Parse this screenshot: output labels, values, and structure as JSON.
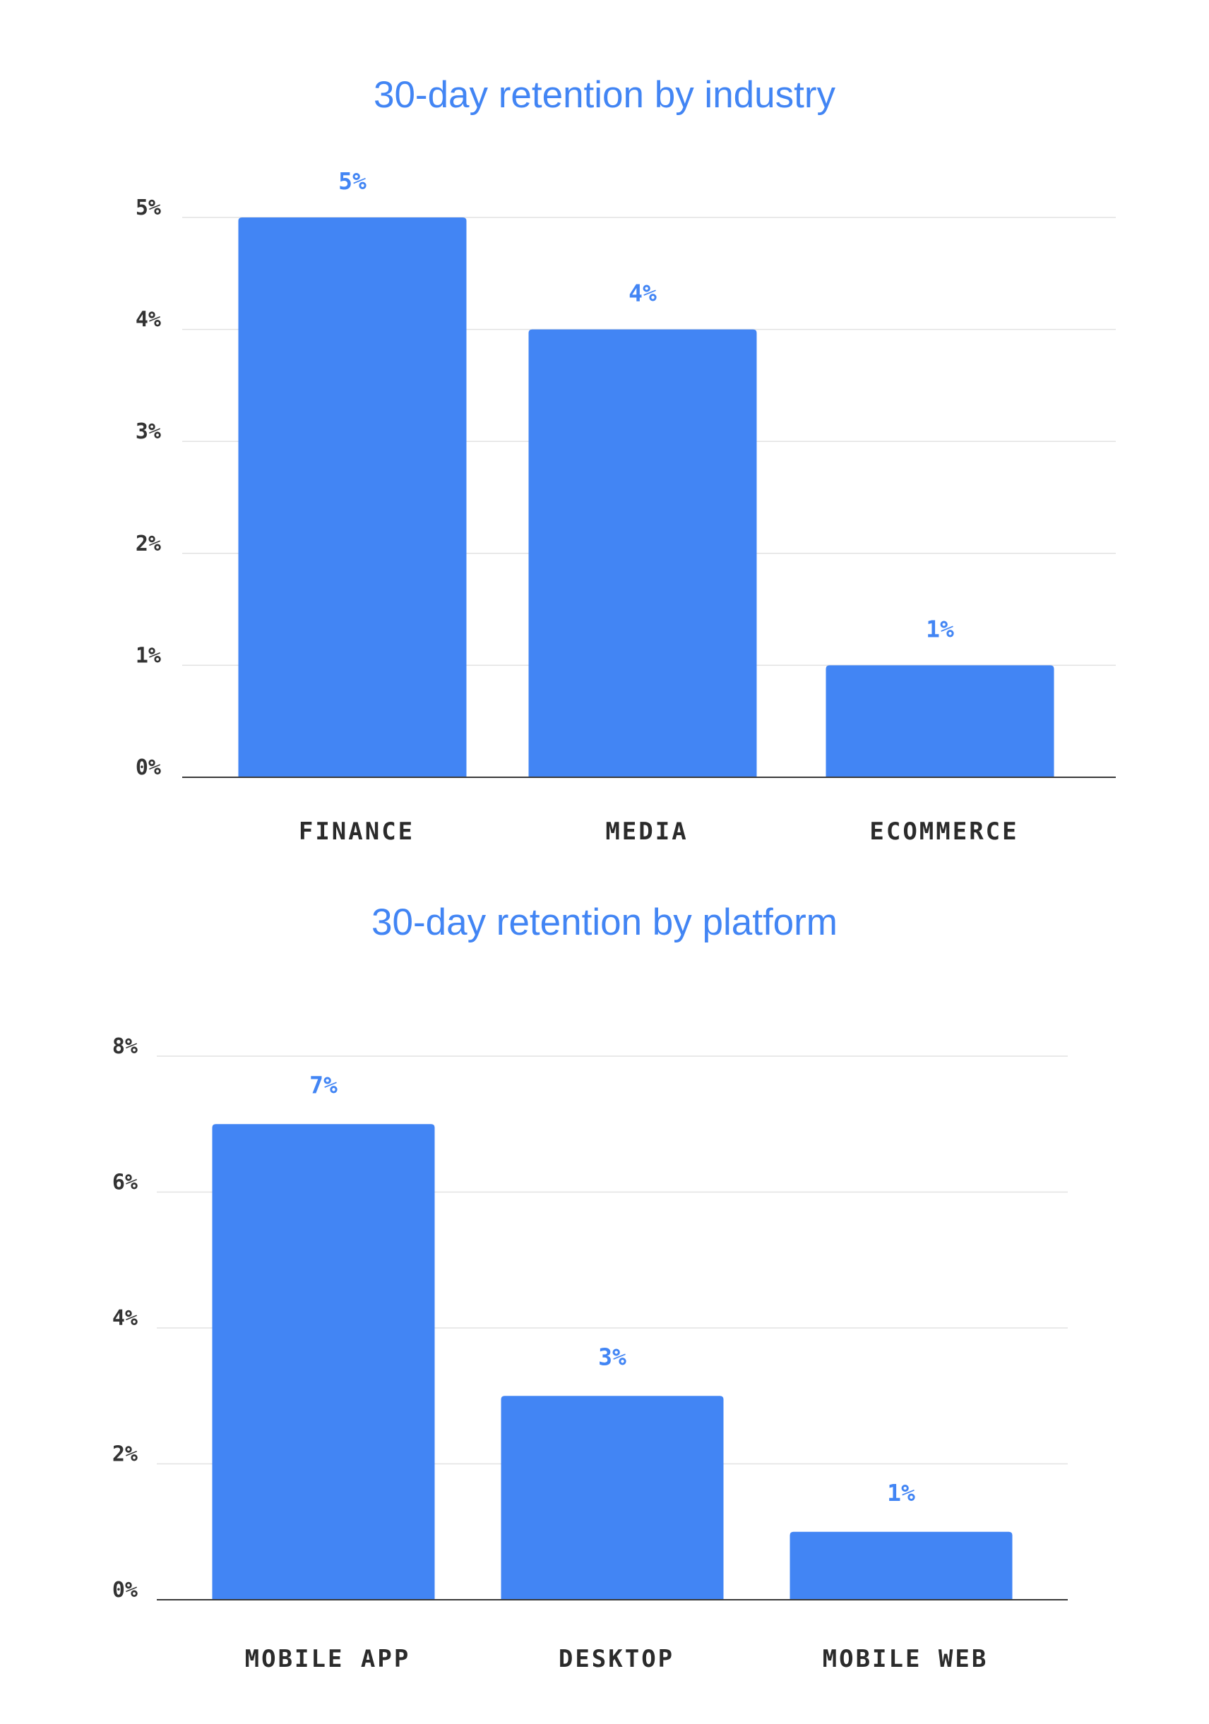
{
  "colors": {
    "bar": "#4285F4",
    "title": "#4285F4",
    "data_label": "#4285F4",
    "axis_text": "#333333",
    "grid": "#e2e2e2",
    "baseline": "#3a3a3a"
  },
  "chart_data": [
    {
      "type": "bar",
      "title": "30-day retention by industry",
      "categories": [
        "FINANCE",
        "MEDIA",
        "ECOMMERCE"
      ],
      "values": [
        5,
        4,
        1
      ],
      "value_labels": [
        "5%",
        "4%",
        "1%"
      ],
      "ylim": [
        0,
        5
      ],
      "yticks": [
        0,
        1,
        2,
        3,
        4,
        5
      ],
      "ytick_labels": [
        "0%",
        "1%",
        "2%",
        "3%",
        "4%",
        "5%"
      ],
      "grid": true
    },
    {
      "type": "bar",
      "title": "30-day retention by platform",
      "categories": [
        "MOBILE APP",
        "DESKTOP",
        "MOBILE WEB"
      ],
      "values": [
        7,
        3,
        1
      ],
      "value_labels": [
        "7%",
        "3%",
        "1%"
      ],
      "ylim": [
        0,
        8
      ],
      "yticks": [
        0,
        2,
        4,
        6,
        8
      ],
      "ytick_labels": [
        "0%",
        "2%",
        "4%",
        "6%",
        "8%"
      ],
      "grid": true
    }
  ]
}
